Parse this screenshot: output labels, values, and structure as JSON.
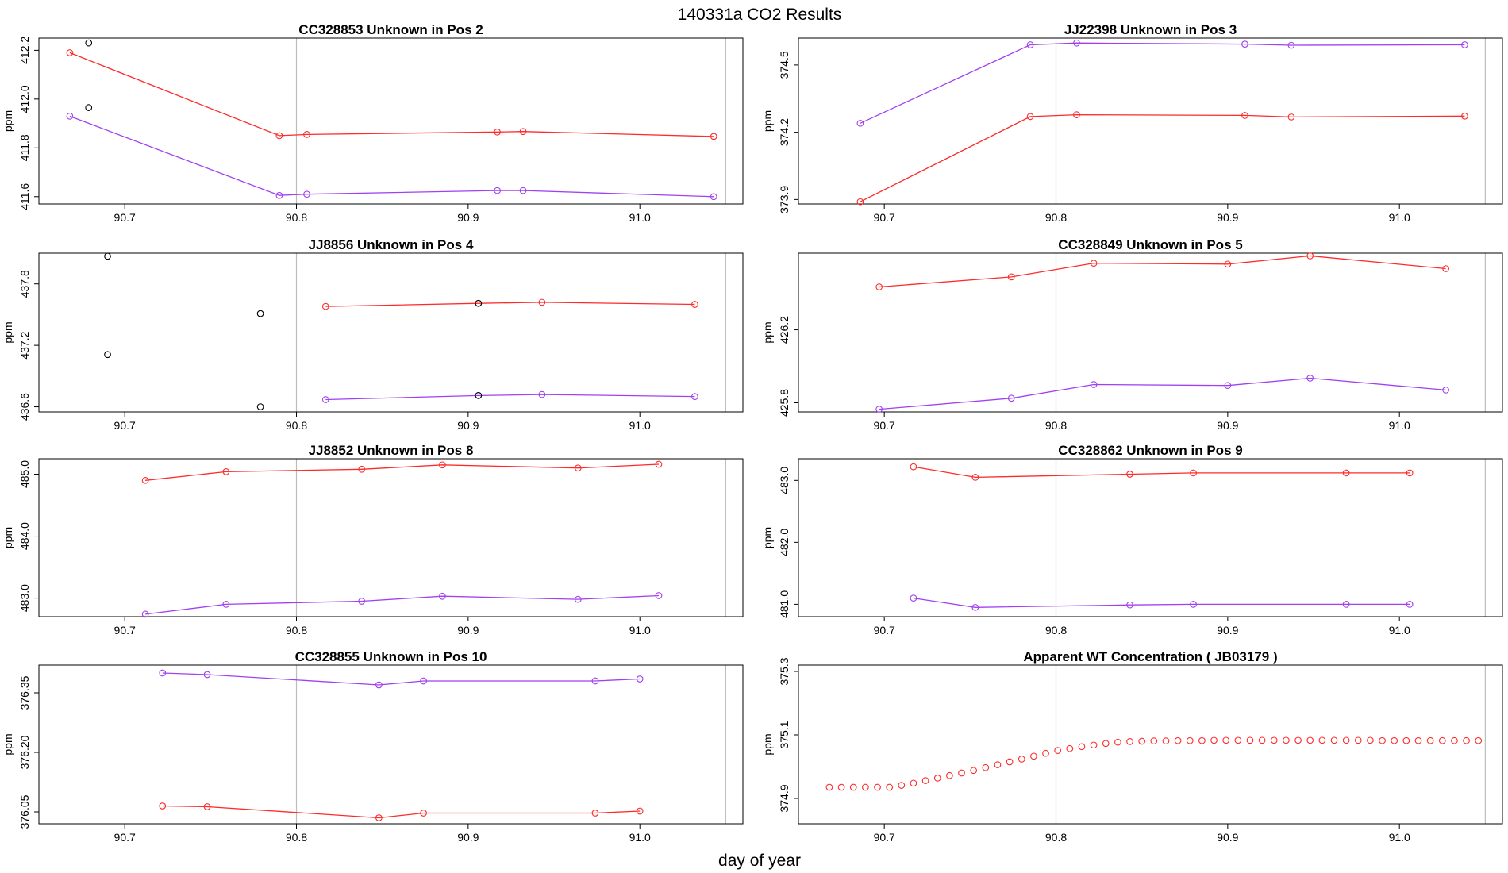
{
  "figure": {
    "title": "140331a  CO2 Results",
    "xlabel": "day of year"
  },
  "colors": {
    "red": "#ff2a2a",
    "purple": "#a040f0",
    "black": "#000000",
    "ref_line": "#bdbdbd"
  },
  "chart_data": [
    {
      "id": "p1",
      "type": "line",
      "title": "CC328853    Unknown in Pos 2",
      "ylabel": "ppm",
      "xlim": [
        90.65,
        91.06
      ],
      "ylim": [
        411.57,
        412.25
      ],
      "xticks": [
        90.7,
        90.8,
        90.9,
        91.0
      ],
      "xtick_labels": [
        "90.7",
        "90.8",
        "90.9",
        "91.0"
      ],
      "yticks": [
        411.6,
        411.8,
        412.0,
        412.2
      ],
      "ytick_labels": [
        "411.6",
        "411.8",
        "412.0",
        "412.2"
      ],
      "vlines": [
        90.8,
        91.05
      ],
      "series": [
        {
          "name": "red",
          "color": "#ff2a2a",
          "x": [
            90.668,
            90.79,
            90.806,
            90.917,
            90.932,
            91.043
          ],
          "y": [
            412.19,
            411.85,
            411.855,
            411.865,
            411.867,
            411.847
          ]
        },
        {
          "name": "purple",
          "color": "#a040f0",
          "x": [
            90.668,
            90.79,
            90.806,
            90.917,
            90.932,
            91.043
          ],
          "y": [
            411.93,
            411.605,
            411.61,
            411.625,
            411.625,
            411.6
          ]
        }
      ],
      "points": [
        {
          "color": "#000000",
          "x": 90.679,
          "y": 412.23
        },
        {
          "color": "#000000",
          "x": 90.679,
          "y": 411.965
        }
      ]
    },
    {
      "id": "p2",
      "type": "line",
      "title": "JJ22398    Unknown in Pos 3",
      "ylabel": "ppm",
      "xlim": [
        90.65,
        91.06
      ],
      "ylim": [
        373.88,
        374.62
      ],
      "xticks": [
        90.7,
        90.8,
        90.9,
        91.0
      ],
      "xtick_labels": [
        "90.7",
        "90.8",
        "90.9",
        "91.0"
      ],
      "yticks": [
        373.9,
        374.2,
        374.5
      ],
      "ytick_labels": [
        "373.9",
        "374.2",
        "374.5"
      ],
      "vlines": [
        90.8,
        91.05
      ],
      "series": [
        {
          "name": "red",
          "color": "#ff2a2a",
          "x": [
            90.686,
            90.785,
            90.812,
            90.91,
            90.937,
            91.038
          ],
          "y": [
            373.89,
            374.27,
            374.278,
            374.275,
            374.268,
            374.272
          ]
        },
        {
          "name": "purple",
          "color": "#a040f0",
          "x": [
            90.686,
            90.785,
            90.812,
            90.91,
            90.937,
            91.038
          ],
          "y": [
            374.24,
            374.59,
            374.598,
            374.593,
            374.588,
            374.59
          ]
        }
      ],
      "points": []
    },
    {
      "id": "p3",
      "type": "line",
      "title": "JJ8856    Unknown in Pos 4",
      "ylabel": "ppm",
      "xlim": [
        90.65,
        91.06
      ],
      "ylim": [
        436.55,
        438.1
      ],
      "xticks": [
        90.7,
        90.8,
        90.9,
        91.0
      ],
      "xtick_labels": [
        "90.7",
        "90.8",
        "90.9",
        "91.0"
      ],
      "yticks": [
        436.6,
        437.2,
        437.8
      ],
      "ytick_labels": [
        "436.6",
        "437.2",
        "437.8"
      ],
      "vlines": [
        90.8,
        91.05
      ],
      "series": [
        {
          "name": "red",
          "color": "#ff2a2a",
          "x": [
            90.817,
            90.906,
            90.943,
            91.032
          ],
          "y": [
            437.58,
            437.61,
            437.62,
            437.6
          ]
        },
        {
          "name": "purple",
          "color": "#a040f0",
          "x": [
            90.817,
            90.906,
            90.943,
            91.032
          ],
          "y": [
            436.67,
            436.71,
            436.72,
            436.7
          ]
        }
      ],
      "points": [
        {
          "color": "#000000",
          "x": 90.69,
          "y": 438.07
        },
        {
          "color": "#000000",
          "x": 90.69,
          "y": 437.11
        },
        {
          "color": "#000000",
          "x": 90.779,
          "y": 437.51
        },
        {
          "color": "#000000",
          "x": 90.779,
          "y": 436.6
        },
        {
          "color": "#000000",
          "x": 90.906,
          "y": 437.61
        },
        {
          "color": "#000000",
          "x": 90.906,
          "y": 436.71
        }
      ]
    },
    {
      "id": "p4",
      "type": "line",
      "title": "CC328849    Unknown in Pos 5",
      "ylabel": "ppm",
      "xlim": [
        90.65,
        91.06
      ],
      "ylim": [
        425.75,
        426.62
      ],
      "xticks": [
        90.7,
        90.8,
        90.9,
        91.0
      ],
      "xtick_labels": [
        "90.7",
        "90.8",
        "90.9",
        "91.0"
      ],
      "yticks": [
        425.8,
        426.2
      ],
      "ytick_labels": [
        "425.8",
        "426.2"
      ],
      "vlines": [
        90.8,
        91.05
      ],
      "series": [
        {
          "name": "red",
          "color": "#ff2a2a",
          "x": [
            90.697,
            90.774,
            90.822,
            90.9,
            90.948,
            91.027
          ],
          "y": [
            426.435,
            426.49,
            426.565,
            426.56,
            426.605,
            426.535
          ]
        },
        {
          "name": "purple",
          "color": "#a040f0",
          "x": [
            90.697,
            90.774,
            90.822,
            90.9,
            90.948,
            91.027
          ],
          "y": [
            425.765,
            425.825,
            425.9,
            425.895,
            425.935,
            425.87
          ]
        }
      ],
      "points": []
    },
    {
      "id": "p5",
      "type": "line",
      "title": "JJ8852    Unknown in Pos 8",
      "ylabel": "ppm",
      "xlim": [
        90.65,
        91.06
      ],
      "ylim": [
        482.7,
        485.25
      ],
      "xticks": [
        90.7,
        90.8,
        90.9,
        91.0
      ],
      "xtick_labels": [
        "90.7",
        "90.8",
        "90.9",
        "91.0"
      ],
      "yticks": [
        483.0,
        484.0,
        485.0
      ],
      "ytick_labels": [
        "483.0",
        "484.0",
        "485.0"
      ],
      "vlines": [
        90.8,
        91.05
      ],
      "series": [
        {
          "name": "red",
          "color": "#ff2a2a",
          "x": [
            90.712,
            90.759,
            90.838,
            90.885,
            90.964,
            91.011
          ],
          "y": [
            484.9,
            485.04,
            485.08,
            485.15,
            485.1,
            485.16
          ]
        },
        {
          "name": "purple",
          "color": "#a040f0",
          "x": [
            90.712,
            90.759,
            90.838,
            90.885,
            90.964,
            91.011
          ],
          "y": [
            482.74,
            482.9,
            482.95,
            483.03,
            482.98,
            483.04
          ]
        }
      ],
      "points": []
    },
    {
      "id": "p6",
      "type": "line",
      "title": "CC328862    Unknown in Pos 9",
      "ylabel": "ppm",
      "xlim": [
        90.65,
        91.06
      ],
      "ylim": [
        480.8,
        483.35
      ],
      "xticks": [
        90.7,
        90.8,
        90.9,
        91.0
      ],
      "xtick_labels": [
        "90.7",
        "90.8",
        "90.9",
        "91.0"
      ],
      "yticks": [
        481.0,
        482.0,
        483.0
      ],
      "ytick_labels": [
        "481.0",
        "482.0",
        "483.0"
      ],
      "vlines": [
        90.8,
        91.05
      ],
      "series": [
        {
          "name": "red",
          "color": "#ff2a2a",
          "x": [
            90.717,
            90.753,
            90.843,
            90.88,
            90.969,
            91.006
          ],
          "y": [
            483.22,
            483.05,
            483.1,
            483.12,
            483.12,
            483.12
          ]
        },
        {
          "name": "purple",
          "color": "#a040f0",
          "x": [
            90.717,
            90.753,
            90.843,
            90.88,
            90.969,
            91.006
          ],
          "y": [
            481.1,
            480.95,
            480.99,
            481.0,
            481.0,
            481.0
          ]
        }
      ],
      "points": []
    },
    {
      "id": "p7",
      "type": "line",
      "title": "CC328855    Unknown in Pos 10",
      "ylabel": "ppm",
      "xlim": [
        90.65,
        91.06
      ],
      "ylim": [
        376.02,
        376.42
      ],
      "xticks": [
        90.7,
        90.8,
        90.9,
        91.0
      ],
      "xtick_labels": [
        "90.7",
        "90.8",
        "90.9",
        "91.0"
      ],
      "yticks": [
        376.05,
        376.2,
        376.35
      ],
      "ytick_labels": [
        "376.05",
        "376.20",
        "376.35"
      ],
      "vlines": [
        90.8,
        91.05
      ],
      "series": [
        {
          "name": "red",
          "color": "#ff2a2a",
          "x": [
            90.722,
            90.748,
            90.848,
            90.874,
            90.974,
            91.0
          ],
          "y": [
            376.065,
            376.063,
            376.035,
            376.047,
            376.047,
            376.052
          ]
        },
        {
          "name": "purple",
          "color": "#a040f0",
          "x": [
            90.722,
            90.748,
            90.848,
            90.874,
            90.974,
            91.0
          ],
          "y": [
            376.4,
            376.396,
            376.37,
            376.38,
            376.38,
            376.385
          ]
        }
      ],
      "points": []
    },
    {
      "id": "p8",
      "type": "scatter",
      "title": "Apparent WT Concentration ( JB03179 )",
      "ylabel": "ppm",
      "xlim": [
        90.65,
        91.06
      ],
      "ylim": [
        374.82,
        375.32
      ],
      "xticks": [
        90.7,
        90.8,
        90.9,
        91.0
      ],
      "xtick_labels": [
        "90.7",
        "90.8",
        "90.9",
        "91.0"
      ],
      "yticks": [
        374.9,
        375.1,
        375.3
      ],
      "ytick_labels": [
        "374.9",
        "375.1",
        "375.3"
      ],
      "vlines": [
        90.8,
        91.05
      ],
      "series": [
        {
          "name": "red",
          "color": "#ff2a2a",
          "lines": false,
          "x": [
            90.668,
            90.675,
            90.682,
            90.689,
            90.696,
            90.703,
            90.71,
            90.717,
            90.724,
            90.731,
            90.738,
            90.745,
            90.752,
            90.759,
            90.766,
            90.773,
            90.78,
            90.787,
            90.794,
            90.801,
            90.808,
            90.815,
            90.822,
            90.829,
            90.836,
            90.843,
            90.85,
            90.857,
            90.864,
            90.871,
            90.878,
            90.885,
            90.892,
            90.899,
            90.906,
            90.913,
            90.92,
            90.927,
            90.934,
            90.941,
            90.948,
            90.955,
            90.962,
            90.969,
            90.976,
            90.983,
            90.99,
            90.997,
            91.004,
            91.011,
            91.018,
            91.025,
            91.032,
            91.039,
            91.046
          ],
          "y": [
            374.935,
            374.935,
            374.935,
            374.935,
            374.935,
            374.935,
            374.941,
            374.948,
            374.956,
            374.964,
            374.972,
            374.98,
            374.988,
            374.997,
            375.006,
            375.015,
            375.024,
            375.033,
            375.042,
            375.051,
            375.057,
            375.063,
            375.068,
            375.073,
            375.077,
            375.079,
            375.08,
            375.081,
            375.081,
            375.082,
            375.082,
            375.082,
            375.083,
            375.083,
            375.083,
            375.083,
            375.083,
            375.083,
            375.083,
            375.083,
            375.083,
            375.083,
            375.083,
            375.083,
            375.083,
            375.083,
            375.082,
            375.082,
            375.082,
            375.082,
            375.082,
            375.082,
            375.082,
            375.082,
            375.082
          ]
        }
      ],
      "points": []
    }
  ]
}
